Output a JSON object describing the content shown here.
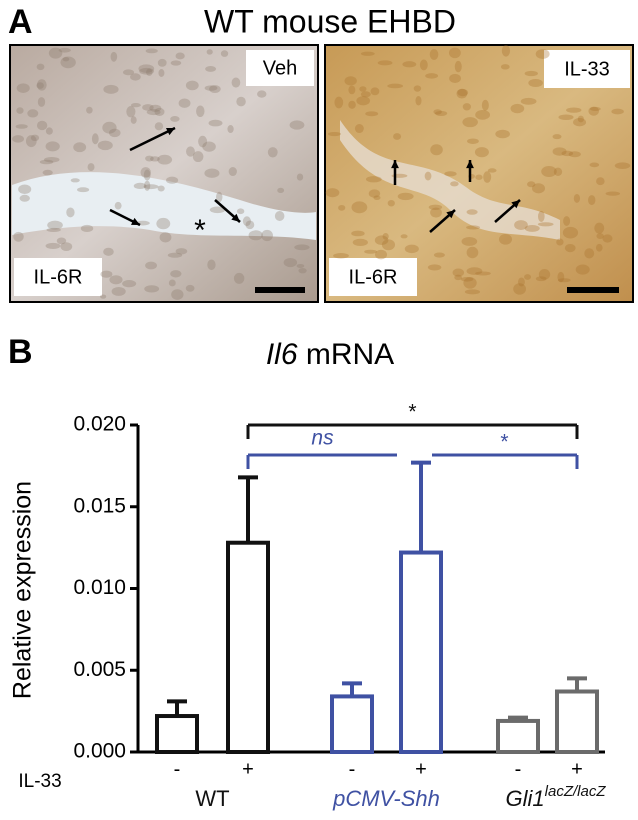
{
  "panel_a": {
    "label": "A",
    "title": "WT mouse EHBD",
    "images": [
      {
        "condition": "Veh",
        "stain": "IL-6R"
      },
      {
        "condition": "IL-33",
        "stain": "IL-6R"
      }
    ]
  },
  "panel_b_label": "B",
  "chart_data": {
    "type": "bar",
    "title_italic": "Il6",
    "title_rest": "mRNA",
    "ylabel": "Relative expression",
    "xrow_label": "IL-33",
    "categories": [
      "-",
      "+",
      "-",
      "+",
      "-",
      "+"
    ],
    "values": [
      0.0022,
      0.0128,
      0.0034,
      0.0122,
      0.0019,
      0.0037
    ],
    "errors": [
      0.0009,
      0.004,
      0.0008,
      0.0055,
      0.0002,
      0.0008
    ],
    "colors": [
      "#111111",
      "#111111",
      "#3f51a3",
      "#3f51a3",
      "#6b6b6b",
      "#6b6b6b"
    ],
    "groups": [
      {
        "label": "WT",
        "color": "#111111"
      },
      {
        "label": "pCMV-Shh",
        "color": "#3f51a3",
        "italic": true
      },
      {
        "label": "Gli1",
        "sup": "lacZ/lacZ",
        "color": "#111111",
        "italic": true
      }
    ],
    "ylim": [
      0,
      0.02
    ],
    "yticks": [
      {
        "value": 0,
        "label": "0.000"
      },
      {
        "value": 0.005,
        "label": "0.005"
      },
      {
        "value": 0.01,
        "label": "0.010"
      },
      {
        "value": 0.015,
        "label": "0.015"
      },
      {
        "value": 0.02,
        "label": "0.020"
      }
    ],
    "comparisons": [
      {
        "from": 1,
        "to": 5,
        "label": "*",
        "color": "#111111"
      },
      {
        "from": 1,
        "to": 3,
        "label": "ns",
        "color": "#3f51a3",
        "italic": true
      },
      {
        "from": 3,
        "to": 5,
        "label": "*",
        "color": "#3f51a3"
      }
    ]
  }
}
